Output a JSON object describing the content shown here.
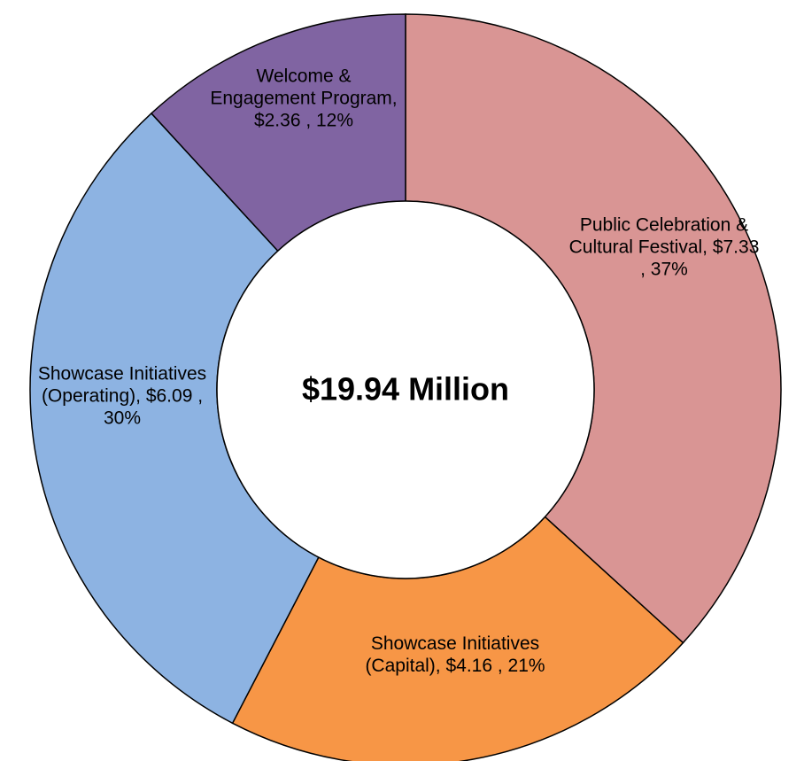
{
  "chart_data": {
    "type": "pie",
    "subtype": "donut",
    "center_label": "$19.94 Million",
    "series": [
      {
        "values": [
          7.33,
          4.16,
          6.09,
          2.36
        ]
      }
    ],
    "categories": [
      "Public Celebration & Cultural Festival",
      "Showcase Initiatives (Capital)",
      "Showcase Initiatives (Operating)",
      "Welcome & Engagement Program"
    ],
    "slices": [
      {
        "label": "Public Celebration & Cultural Festival",
        "value": 7.33,
        "percent": "37%",
        "color": "#d99594",
        "label_lines": [
          "Public Celebration &",
          "Cultural Festival,  $7.33",
          ", 37%"
        ]
      },
      {
        "label": "Showcase Initiatives (Capital)",
        "value": 4.16,
        "percent": "21%",
        "color": "#f79646",
        "label_lines": [
          "Showcase Initiatives",
          "(Capital),  $4.16 , 21%"
        ]
      },
      {
        "label": "Showcase Initiatives (Operating)",
        "value": 6.09,
        "percent": "30%",
        "color": "#8db3e2",
        "label_lines": [
          "Showcase Initiatives",
          "(Operating),  $6.09 ,",
          "30%"
        ]
      },
      {
        "label": "Welcome & Engagement Program",
        "value": 2.36,
        "percent": "12%",
        "color": "#8064a2",
        "label_lines": [
          "Welcome &",
          "Engagement Program,",
          "$2.36 , 12%"
        ]
      }
    ],
    "legend": "none",
    "start_angle": "12 o'clock, clockwise"
  }
}
